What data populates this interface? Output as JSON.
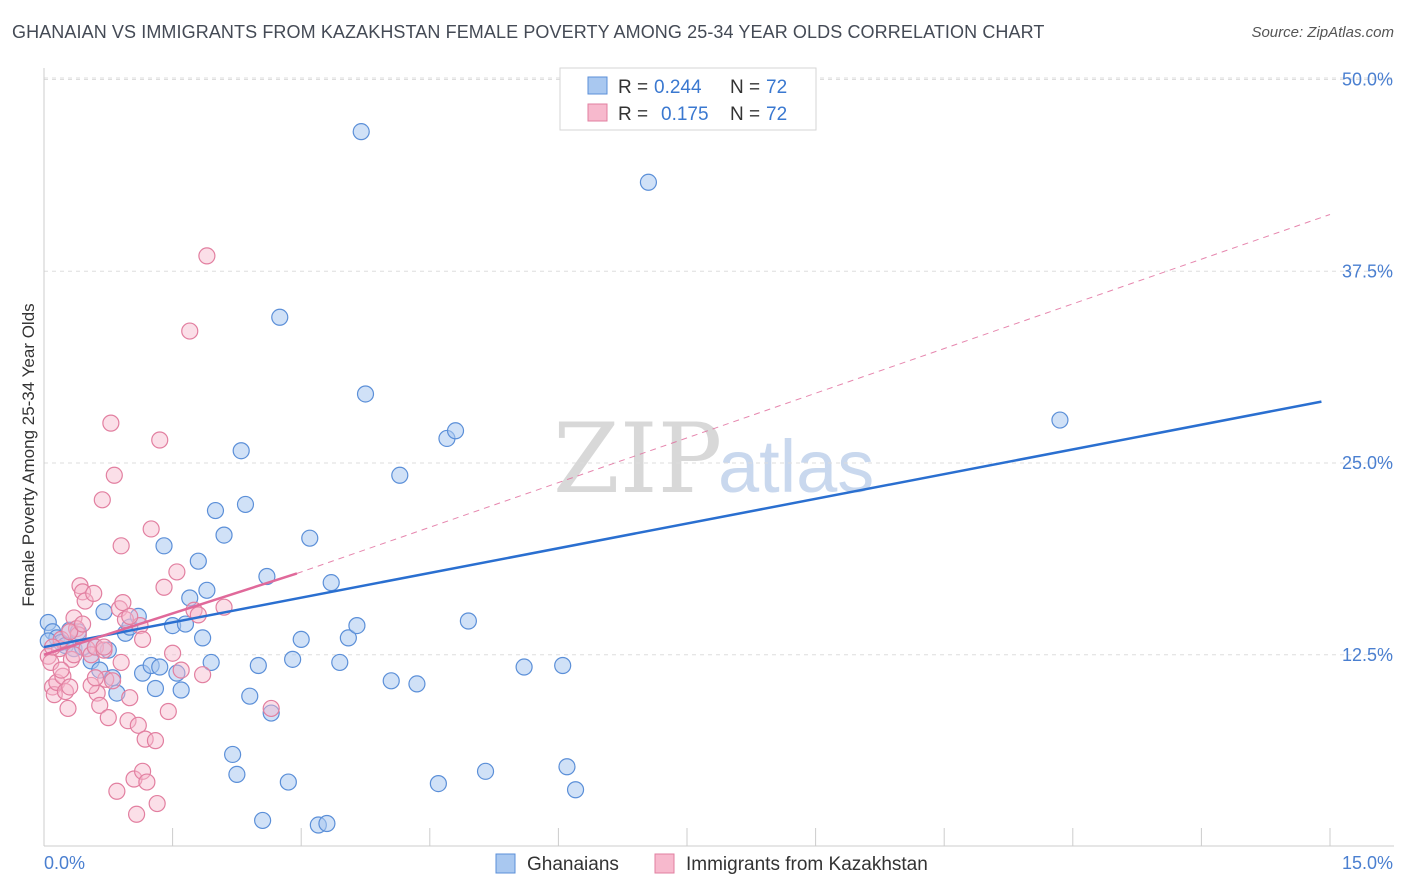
{
  "title": "GHANAIAN VS IMMIGRANTS FROM KAZAKHSTAN FEMALE POVERTY AMONG 25-34 YEAR OLDS CORRELATION CHART",
  "source": "Source: ZipAtlas.com",
  "watermark": {
    "zip": "ZIP",
    "atlas": "atlas"
  },
  "colors": {
    "blue_fill": "#a9c8f0",
    "blue_stroke": "#5b8fd8",
    "blue_line": "#2a6fd0",
    "pink_fill": "#f7b9cd",
    "pink_stroke": "#e27fa0",
    "pink_line": "#e0699a",
    "grid": "#dddddd",
    "tick_text": "#4a7fd0"
  },
  "legend": {
    "r_label": "R =",
    "n_label": "N =",
    "rows": [
      {
        "r": "0.244",
        "n": "72"
      },
      {
        "r": "0.175",
        "n": "72"
      }
    ]
  },
  "chart_data": {
    "type": "scatter",
    "title": "GHANAIAN VS IMMIGRANTS FROM KAZAKHSTAN FEMALE POVERTY AMONG 25-34 YEAR OLDS CORRELATION CHART",
    "xlabel": "",
    "ylabel": "Female Poverty Among 25-34 Year Olds",
    "xlim": [
      0,
      15
    ],
    "ylim": [
      0,
      52
    ],
    "x_tick_labels": [
      "0.0%",
      "15.0%"
    ],
    "y_ticks": [
      12.5,
      25.0,
      37.5,
      50.0
    ],
    "y_tick_labels": [
      "12.5%",
      "25.0%",
      "37.5%",
      "50.0%"
    ],
    "grid": true,
    "legend_position": "top-center",
    "series": [
      {
        "name": "Ghanaians",
        "color": "#a9c8f0",
        "trend": {
          "x0": 0.0,
          "y0": 13.0,
          "x1": 14.9,
          "y1": 29.0,
          "style": "solid"
        },
        "points": [
          [
            0.05,
            14.6
          ],
          [
            0.1,
            14.0
          ],
          [
            0.15,
            13.6
          ],
          [
            0.2,
            13.3
          ],
          [
            0.25,
            13.1
          ],
          [
            0.3,
            14.1
          ],
          [
            0.35,
            12.9
          ],
          [
            0.4,
            14.0
          ],
          [
            0.45,
            13.0
          ],
          [
            0.55,
            12.1
          ],
          [
            0.6,
            13.0
          ],
          [
            0.65,
            11.5
          ],
          [
            0.7,
            15.3
          ],
          [
            0.75,
            12.8
          ],
          [
            0.8,
            11.0
          ],
          [
            0.85,
            10.0
          ],
          [
            0.95,
            13.9
          ],
          [
            1.0,
            14.3
          ],
          [
            1.1,
            15.0
          ],
          [
            1.15,
            11.3
          ],
          [
            1.25,
            11.8
          ],
          [
            1.3,
            10.3
          ],
          [
            1.35,
            11.7
          ],
          [
            1.4,
            19.6
          ],
          [
            1.5,
            14.4
          ],
          [
            1.55,
            11.3
          ],
          [
            1.6,
            10.2
          ],
          [
            1.65,
            14.5
          ],
          [
            1.7,
            16.2
          ],
          [
            1.8,
            18.6
          ],
          [
            1.85,
            13.6
          ],
          [
            1.9,
            16.7
          ],
          [
            1.95,
            12.0
          ],
          [
            2.0,
            21.9
          ],
          [
            2.1,
            20.3
          ],
          [
            2.2,
            6.0
          ],
          [
            2.25,
            4.7
          ],
          [
            2.3,
            25.8
          ],
          [
            2.35,
            22.3
          ],
          [
            2.4,
            9.8
          ],
          [
            2.5,
            11.8
          ],
          [
            2.55,
            1.7
          ],
          [
            2.6,
            17.6
          ],
          [
            2.65,
            8.7
          ],
          [
            2.75,
            34.5
          ],
          [
            2.85,
            4.2
          ],
          [
            2.9,
            12.2
          ],
          [
            3.0,
            13.5
          ],
          [
            3.1,
            20.1
          ],
          [
            3.2,
            1.4
          ],
          [
            3.3,
            1.5
          ],
          [
            3.35,
            17.2
          ],
          [
            3.45,
            12.0
          ],
          [
            3.55,
            13.6
          ],
          [
            3.65,
            14.4
          ],
          [
            3.7,
            46.6
          ],
          [
            3.75,
            29.5
          ],
          [
            4.05,
            10.8
          ],
          [
            4.15,
            24.2
          ],
          [
            4.35,
            10.6
          ],
          [
            4.6,
            4.1
          ],
          [
            4.7,
            26.6
          ],
          [
            4.8,
            27.1
          ],
          [
            4.95,
            14.7
          ],
          [
            5.15,
            4.9
          ],
          [
            5.6,
            11.7
          ],
          [
            6.05,
            11.8
          ],
          [
            6.1,
            5.2
          ],
          [
            6.2,
            3.7
          ],
          [
            7.05,
            43.3
          ],
          [
            11.85,
            27.8
          ],
          [
            0.05,
            13.4
          ]
        ]
      },
      {
        "name": "Immigrants from Kazakhstan",
        "color": "#f7b9cd",
        "trend": {
          "x0": 0.0,
          "y0": 12.5,
          "x1": 2.95,
          "y1": 17.8,
          "style": "solid",
          "ext_x1": 15.0,
          "ext_y1": 41.2,
          "ext_style": "dashed"
        },
        "points": [
          [
            0.05,
            12.4
          ],
          [
            0.08,
            12.0
          ],
          [
            0.1,
            10.4
          ],
          [
            0.12,
            9.9
          ],
          [
            0.15,
            10.7
          ],
          [
            0.18,
            12.9
          ],
          [
            0.2,
            13.5
          ],
          [
            0.22,
            11.1
          ],
          [
            0.25,
            10.1
          ],
          [
            0.28,
            9.0
          ],
          [
            0.3,
            10.4
          ],
          [
            0.32,
            12.2
          ],
          [
            0.35,
            14.9
          ],
          [
            0.38,
            14.2
          ],
          [
            0.4,
            13.8
          ],
          [
            0.42,
            17.0
          ],
          [
            0.45,
            16.6
          ],
          [
            0.48,
            16.0
          ],
          [
            0.5,
            12.9
          ],
          [
            0.55,
            12.5
          ],
          [
            0.58,
            16.5
          ],
          [
            0.6,
            13.0
          ],
          [
            0.62,
            10.0
          ],
          [
            0.65,
            9.2
          ],
          [
            0.68,
            22.6
          ],
          [
            0.7,
            12.8
          ],
          [
            0.72,
            10.9
          ],
          [
            0.75,
            8.4
          ],
          [
            0.78,
            27.6
          ],
          [
            0.8,
            10.8
          ],
          [
            0.82,
            24.2
          ],
          [
            0.85,
            3.6
          ],
          [
            0.88,
            15.5
          ],
          [
            0.9,
            19.6
          ],
          [
            0.92,
            15.9
          ],
          [
            0.95,
            14.8
          ],
          [
            0.98,
            8.2
          ],
          [
            1.0,
            9.7
          ],
          [
            1.05,
            4.4
          ],
          [
            1.08,
            2.1
          ],
          [
            1.1,
            7.9
          ],
          [
            1.12,
            14.4
          ],
          [
            1.15,
            4.9
          ],
          [
            1.18,
            7.0
          ],
          [
            1.2,
            4.2
          ],
          [
            1.25,
            20.7
          ],
          [
            1.3,
            6.9
          ],
          [
            1.32,
            2.8
          ],
          [
            1.35,
            26.5
          ],
          [
            1.4,
            16.9
          ],
          [
            1.45,
            8.8
          ],
          [
            1.5,
            12.6
          ],
          [
            1.55,
            17.9
          ],
          [
            1.6,
            11.5
          ],
          [
            1.7,
            33.6
          ],
          [
            1.75,
            15.4
          ],
          [
            1.8,
            15.1
          ],
          [
            1.85,
            11.2
          ],
          [
            1.9,
            38.5
          ],
          [
            2.1,
            15.6
          ],
          [
            2.65,
            9.0
          ],
          [
            0.3,
            14.0
          ],
          [
            0.45,
            14.5
          ],
          [
            0.7,
            13.0
          ],
          [
            0.2,
            11.5
          ],
          [
            0.55,
            10.5
          ],
          [
            0.9,
            12.0
          ],
          [
            1.15,
            13.5
          ],
          [
            0.35,
            12.5
          ],
          [
            0.6,
            11.0
          ],
          [
            1.0,
            15.0
          ],
          [
            0.1,
            13.0
          ]
        ]
      }
    ]
  },
  "bottom_legend": [
    {
      "label": "Ghanaians"
    },
    {
      "label": "Immigrants from Kazakhstan"
    }
  ]
}
